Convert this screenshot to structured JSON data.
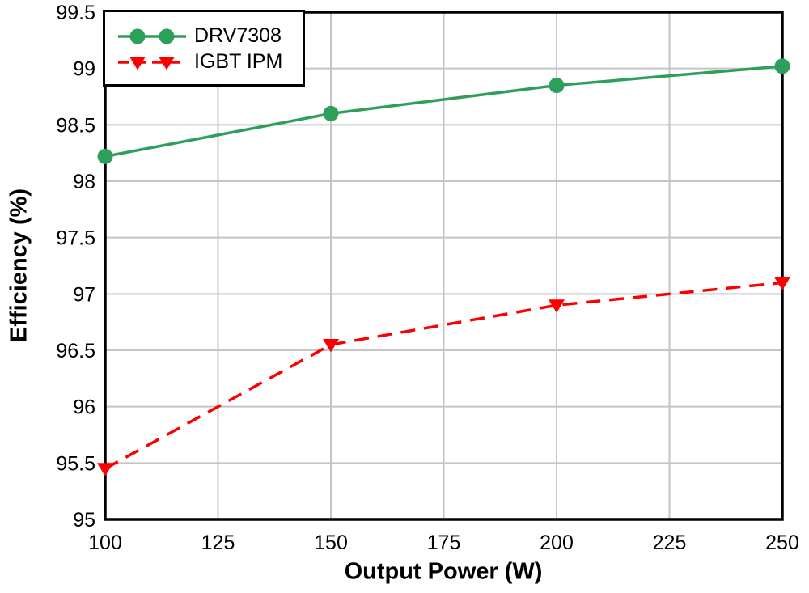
{
  "figure": {
    "background": "#ffffff",
    "axis_color": "#000000",
    "grid_color": "#c5c5c5",
    "tick_label_color": "#000000"
  },
  "chart_data": {
    "type": "line",
    "title": "",
    "xlabel": "Output Power (W)",
    "ylabel": "Efficiency (%)",
    "x": [
      100,
      150,
      200,
      250
    ],
    "series": [
      {
        "name": "DRV7308",
        "values": [
          98.22,
          98.6,
          98.85,
          99.02
        ],
        "color": "#2E9E5B",
        "marker": "circle",
        "line_style": "solid"
      },
      {
        "name": "IGBT IPM",
        "values": [
          95.45,
          96.55,
          96.9,
          97.1
        ],
        "color": "#FA0000",
        "marker": "triangle-down",
        "line_style": "dashed"
      }
    ],
    "xlim": [
      100,
      250
    ],
    "ylim": [
      95,
      99.5
    ],
    "x_ticks": [
      100,
      125,
      150,
      175,
      200,
      225,
      250
    ],
    "y_ticks": [
      95,
      95.5,
      96,
      96.5,
      97,
      97.5,
      98,
      98.5,
      99,
      99.5
    ],
    "grid": true,
    "legend_position": "top-left"
  }
}
